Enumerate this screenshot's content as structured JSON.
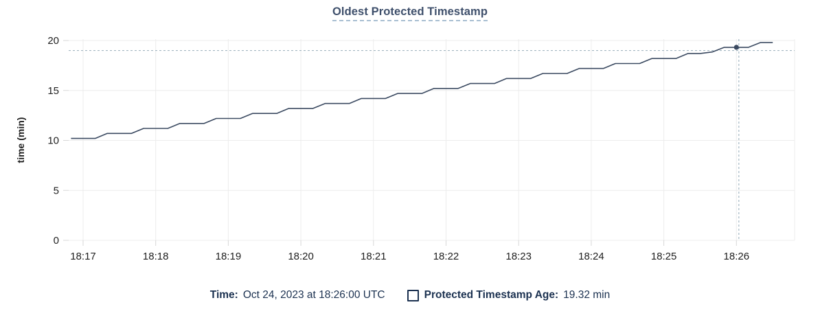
{
  "title": "Oldest Protected Timestamp",
  "legend": {
    "time_label": "Time:",
    "time_value": "Oct 24, 2023 at 18:26:00 UTC",
    "series_label": "Protected Timestamp Age:",
    "series_value": "19.32 min"
  },
  "colors": {
    "line": "#3b4a61",
    "dot": "#3b4a61",
    "grid": "#ececec",
    "tick": "#d7d7d7",
    "crosshair": "#a3b7c2",
    "axis_text": "#1e1e1e",
    "title_text": "#3e4f6b",
    "legend_text": "#1b3150"
  },
  "chart_data": {
    "type": "line",
    "title": "Oldest Protected Timestamp",
    "xlabel": "",
    "ylabel": "time (min)",
    "ylim": [
      0,
      20
    ],
    "y_ticks": [
      0,
      5,
      10,
      15,
      20
    ],
    "x_tick_labels": [
      "18:17",
      "18:18",
      "18:19",
      "18:20",
      "18:21",
      "18:22",
      "18:23",
      "18:24",
      "18:25",
      "18:26"
    ],
    "grid": "on",
    "legend_position": "bottom",
    "series": [
      {
        "name": "Protected Timestamp Age",
        "unit": "min",
        "start_time": "18:16:50",
        "interval_seconds": 10,
        "values": [
          10.2,
          10.2,
          10.2,
          10.7,
          10.7,
          10.7,
          11.2,
          11.2,
          11.2,
          11.7,
          11.7,
          11.7,
          12.2,
          12.2,
          12.2,
          12.7,
          12.7,
          12.7,
          13.2,
          13.2,
          13.2,
          13.7,
          13.7,
          13.7,
          14.2,
          14.2,
          14.2,
          14.7,
          14.7,
          14.7,
          15.2,
          15.2,
          15.2,
          15.7,
          15.7,
          15.7,
          16.2,
          16.2,
          16.2,
          16.7,
          16.7,
          16.7,
          17.2,
          17.2,
          17.2,
          17.7,
          17.7,
          17.7,
          18.2,
          18.2,
          18.2,
          18.7,
          18.7,
          18.85,
          19.32,
          19.32,
          19.32,
          19.8,
          19.8
        ]
      }
    ],
    "hover": {
      "time": "18:26:00",
      "value": 19.32,
      "crosshair_x_time": "18:26:02",
      "crosshair_y_value": 19.0
    }
  }
}
